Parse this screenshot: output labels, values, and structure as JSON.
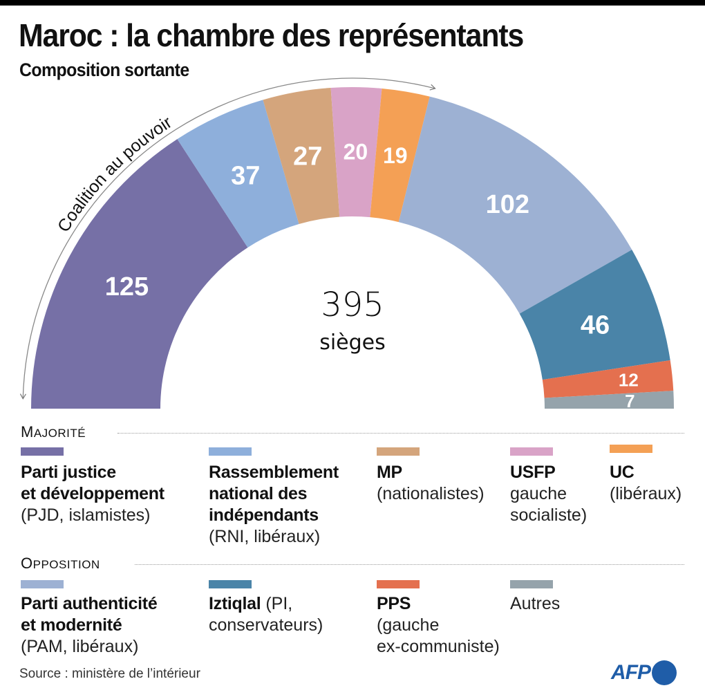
{
  "header": {
    "title": "Maroc : la chambre des représentants",
    "subtitle": "Composition sortante"
  },
  "chart_data": {
    "type": "pie",
    "subtype": "parliament-semicircle",
    "title": "Maroc : la chambre des représentants",
    "subtitle": "Composition sortante",
    "total": 395,
    "total_label": "395",
    "total_unit": "sièges",
    "arc_annotation": "Coalition au pouvoir",
    "slices": [
      {
        "key": "pjd",
        "value": 125,
        "label": "125",
        "color": "#7670a6",
        "group": "majorite"
      },
      {
        "key": "rni",
        "value": 37,
        "label": "37",
        "color": "#8eafdb",
        "group": "majorite"
      },
      {
        "key": "mp",
        "value": 27,
        "label": "27",
        "color": "#d4a57c",
        "group": "majorite"
      },
      {
        "key": "usfp",
        "value": 20,
        "label": "20",
        "color": "#d9a3c7",
        "group": "majorite"
      },
      {
        "key": "uc",
        "value": 19,
        "label": "19",
        "color": "#f4a055",
        "group": "majorite"
      },
      {
        "key": "pam",
        "value": 102,
        "label": "102",
        "color": "#9db1d3",
        "group": "opposition"
      },
      {
        "key": "pi",
        "value": 46,
        "label": "46",
        "color": "#4a84a8",
        "group": "opposition"
      },
      {
        "key": "pps",
        "value": 12,
        "label": "12",
        "color": "#e4704f",
        "group": "opposition"
      },
      {
        "key": "autres",
        "value": 7,
        "label": "7",
        "color": "#95a3ab",
        "group": "opposition"
      }
    ]
  },
  "legend": {
    "majorite": {
      "heading_first": "M",
      "heading_rest": "AJORITÉ",
      "items": [
        {
          "key": "pjd",
          "color": "#7670a6",
          "lines": [
            {
              "b": "Parti justice"
            },
            {
              "b": "et développement"
            },
            {
              "l": "(PJD, islamistes)"
            }
          ]
        },
        {
          "key": "rni",
          "color": "#8eafdb",
          "lines": [
            {
              "b": "Rassemblement"
            },
            {
              "b": "national des"
            },
            {
              "b": "indépendants"
            },
            {
              "l": "(RNI, libéraux)"
            }
          ]
        },
        {
          "key": "mp",
          "color": "#d4a57c",
          "lines": [
            {
              "b": "MP"
            },
            {
              "l": "(nationalistes)"
            }
          ]
        },
        {
          "key": "usfp",
          "color": "#d9a3c7",
          "lines": [
            {
              "b": "USFP"
            },
            {
              "l": "gauche"
            },
            {
              "l": "socialiste)"
            }
          ]
        },
        {
          "key": "uc",
          "color": "#f4a055",
          "lines": [
            {
              "b": "UC"
            },
            {
              "l": "(libéraux)"
            }
          ]
        }
      ]
    },
    "opposition": {
      "heading_first": "O",
      "heading_rest": "PPOSITION",
      "items": [
        {
          "key": "pam",
          "color": "#9db1d3",
          "lines": [
            {
              "b": "Parti authenticité"
            },
            {
              "b": "et modernité"
            },
            {
              "l": "(PAM, libéraux)"
            }
          ]
        },
        {
          "key": "pi",
          "color": "#4a84a8",
          "lines": [
            {
              "b": "Iztiqlal",
              "l": " (PI,"
            },
            {
              "l": "conservateurs)"
            }
          ]
        },
        {
          "key": "pps",
          "color": "#e4704f",
          "lines": [
            {
              "b": "PPS"
            },
            {
              "l": "(gauche"
            },
            {
              "l": "ex-communiste)"
            }
          ]
        },
        {
          "key": "autres",
          "color": "#95a3ab",
          "lines": [
            {
              "l": "Autres"
            }
          ]
        }
      ]
    }
  },
  "footer": {
    "source": "Source : ministère de l’intérieur",
    "logo_text": "AFP"
  }
}
